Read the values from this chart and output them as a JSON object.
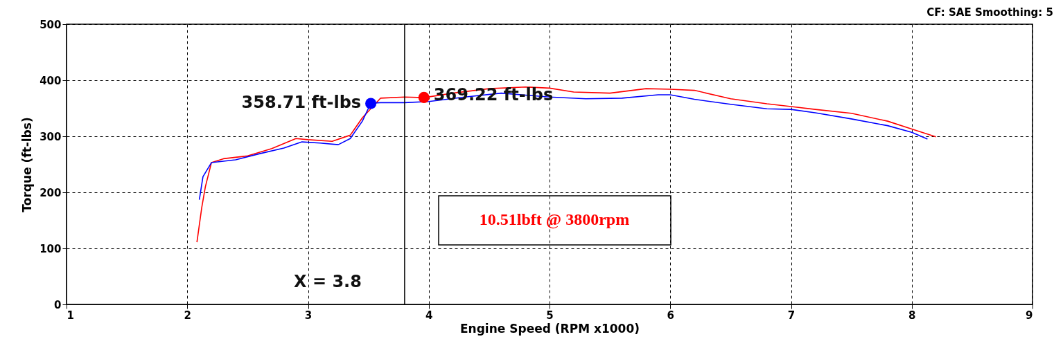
{
  "chart_data": {
    "type": "line",
    "xlabel": "Engine Speed (RPM x1000)",
    "ylabel": "Torque (ft-lbs)",
    "annotations": [
      "CF: SAE  Smoothing: 5",
      "10.51lbft @ 3800rpm"
    ],
    "xlim": [
      1,
      9
    ],
    "xticks": [
      1,
      2,
      3,
      4,
      5,
      6,
      7,
      8,
      9
    ],
    "ylim": [
      0,
      500
    ],
    "yticks": [
      0,
      100,
      200,
      300,
      400,
      500
    ],
    "grid": true,
    "ref_lines": [
      {
        "axis": "x",
        "value": 3.8,
        "label": "X = 3.8",
        "color": "#000000"
      }
    ],
    "series": [
      {
        "color": "#ff0000",
        "x": [
          2.08,
          2.12,
          2.15,
          2.2,
          2.3,
          2.5,
          2.7,
          2.9,
          3.0,
          3.2,
          3.35,
          3.45,
          3.6,
          3.8,
          3.96,
          4.2,
          4.5,
          4.8,
          5.0,
          5.2,
          5.5,
          5.8,
          6.0,
          6.2,
          6.5,
          6.8,
          7.0,
          7.2,
          7.5,
          7.8,
          8.0,
          8.2
        ],
        "values": [
          111,
          173,
          210,
          253,
          260,
          265,
          278,
          296,
          294,
          291,
          302,
          333,
          368,
          370,
          369,
          377,
          385,
          388,
          386,
          379,
          377,
          385,
          384,
          382,
          367,
          358,
          353,
          348,
          341,
          327,
          313,
          299
        ]
      },
      {
        "color": "#0000ff",
        "x": [
          2.1,
          2.13,
          2.2,
          2.4,
          2.6,
          2.8,
          2.95,
          3.1,
          3.25,
          3.35,
          3.45,
          3.52,
          3.6,
          3.8,
          4.0,
          4.3,
          4.6,
          5.0,
          5.3,
          5.6,
          5.9,
          6.0,
          6.2,
          6.5,
          6.8,
          7.0,
          7.2,
          7.5,
          7.8,
          8.0,
          8.13
        ],
        "values": [
          187,
          228,
          253,
          258,
          269,
          279,
          290,
          288,
          285,
          296,
          327,
          359,
          360,
          360,
          362,
          370,
          377,
          370,
          367,
          368,
          374,
          374,
          366,
          357,
          349,
          348,
          342,
          331,
          319,
          307,
          295
        ]
      },
      {
        "type": "scatter",
        "color": "#0000ff",
        "x": [
          3.52
        ],
        "values": [
          358.71
        ],
        "value_labels": [
          "358.71 ft-lbs"
        ]
      },
      {
        "type": "scatter",
        "color": "#ff0000",
        "x": [
          3.96
        ],
        "values": [
          369.22
        ],
        "value_labels": [
          "369.22 ft-lbs"
        ]
      }
    ]
  }
}
